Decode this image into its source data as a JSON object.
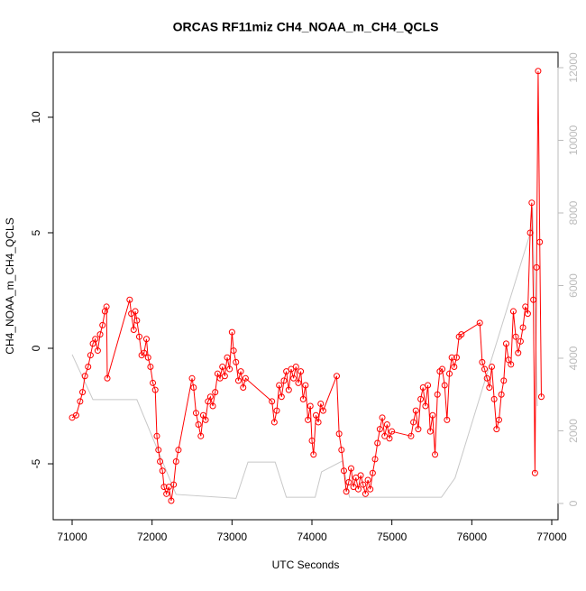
{
  "chart_data": {
    "type": "line",
    "title": "ORCAS RF11miz CH4_NOAA_m_CH4_QCLS",
    "x_label": "UTC Seconds",
    "y_label": "CH4_NOAA_m_CH4_QCLS",
    "xlim": [
      70763,
      77079
    ],
    "xticks": [
      71000,
      72000,
      73000,
      74000,
      75000,
      76000,
      77000
    ],
    "ylim": [
      -7.42,
      12.81
    ],
    "yticks": [
      -5,
      0,
      5,
      10
    ],
    "y2lim": [
      -447,
      12422
    ],
    "y2ticks": [
      0,
      2000,
      4000,
      6000,
      8000,
      10000,
      12000
    ],
    "series": [
      {
        "color": "#ff0000",
        "markers": true,
        "x": [
          71000,
          71050,
          71100,
          71130,
          71160,
          71200,
          71230,
          71260,
          71290,
          71320,
          71350,
          71380,
          71410,
          71430,
          71440,
          71720,
          71740,
          71770,
          71790,
          71810,
          71840,
          71870,
          71900,
          71930,
          71950,
          71980,
          72010,
          72040,
          72060,
          72080,
          72100,
          72130,
          72150,
          72180,
          72210,
          72240,
          72270,
          72300,
          72330,
          72500,
          72520,
          72550,
          72580,
          72610,
          72640,
          72670,
          72700,
          72730,
          72760,
          72790,
          72820,
          72850,
          72880,
          72910,
          72940,
          72970,
          73000,
          73020,
          73050,
          73080,
          73110,
          73140,
          73170,
          73500,
          73530,
          73560,
          73590,
          73620,
          73650,
          73680,
          73710,
          73740,
          73770,
          73800,
          73830,
          73860,
          73890,
          73920,
          73950,
          73980,
          74000,
          74020,
          74050,
          74080,
          74110,
          74140,
          74310,
          74340,
          74370,
          74400,
          74430,
          74460,
          74490,
          74520,
          74550,
          74580,
          74610,
          74640,
          74670,
          74700,
          74730,
          74760,
          74790,
          74820,
          74850,
          74880,
          74910,
          74940,
          74970,
          75000,
          75240,
          75270,
          75300,
          75330,
          75360,
          75390,
          75420,
          75450,
          75480,
          75510,
          75540,
          75570,
          75600,
          75630,
          75660,
          75690,
          75720,
          75750,
          75780,
          75810,
          75840,
          75870,
          76100,
          76130,
          76160,
          76190,
          76220,
          76250,
          76280,
          76310,
          76340,
          76370,
          76400,
          76430,
          76460,
          76490,
          76520,
          76550,
          76580,
          76610,
          76640,
          76670,
          76700,
          76730,
          76750,
          76770,
          76790,
          76810,
          76830,
          76850,
          76870
        ],
        "values": [
          -3,
          -2.9,
          -2.3,
          -1.9,
          -1.2,
          -0.8,
          -0.3,
          0.2,
          0.4,
          -0.1,
          0.6,
          1.0,
          1.6,
          1.8,
          -1.3,
          2.1,
          1.5,
          0.8,
          1.6,
          1.2,
          0.5,
          -0.3,
          -0.2,
          0.4,
          -0.4,
          -0.8,
          -1.5,
          -1.8,
          -3.8,
          -4.4,
          -4.9,
          -5.3,
          -6.0,
          -6.3,
          -6.0,
          -6.6,
          -5.9,
          -4.9,
          -4.4,
          -1.3,
          -1.7,
          -2.8,
          -3.3,
          -3.8,
          -2.9,
          -3.1,
          -2.3,
          -2.1,
          -2.5,
          -1.9,
          -1.1,
          -1.3,
          -0.8,
          -1.2,
          -0.4,
          -0.9,
          0.7,
          -0.1,
          -0.6,
          -1.4,
          -1.0,
          -1.7,
          -1.3,
          -2.3,
          -3.2,
          -2.7,
          -1.6,
          -2.1,
          -1.4,
          -1.0,
          -1.8,
          -0.9,
          -1.3,
          -0.8,
          -1.5,
          -1.0,
          -2.2,
          -1.6,
          -3.1,
          -2.5,
          -4.0,
          -4.6,
          -2.9,
          -3.2,
          -2.4,
          -2.7,
          -1.2,
          -3.7,
          -4.4,
          -5.3,
          -6.2,
          -5.8,
          -5.2,
          -6.0,
          -5.6,
          -6.1,
          -5.5,
          -5.9,
          -6.3,
          -5.7,
          -6.1,
          -5.4,
          -4.8,
          -4.1,
          -3.5,
          -3.0,
          -3.8,
          -3.3,
          -3.9,
          -3.6,
          -3.8,
          -3.2,
          -2.7,
          -3.5,
          -2.2,
          -1.7,
          -2.5,
          -1.6,
          -3.6,
          -2.9,
          -4.6,
          -2.0,
          -1.0,
          -0.9,
          -1.6,
          -3.1,
          -1.1,
          -0.4,
          -0.8,
          -0.4,
          0.5,
          0.6,
          1.1,
          -0.6,
          -0.9,
          -1.3,
          -1.7,
          -0.8,
          -2.2,
          -3.5,
          -3.1,
          -2.0,
          -1.4,
          0.2,
          -0.5,
          -0.7,
          1.6,
          0.5,
          -0.2,
          0.3,
          0.9,
          1.8,
          1.5,
          5.0,
          6.3,
          2.1,
          -5.4,
          3.5,
          12.0,
          4.6,
          -2.1
        ]
      },
      {
        "color": "#c8c8c8",
        "axis": "y2",
        "markers": false,
        "x": [
          71000,
          71260,
          71810,
          72300,
          73050,
          73200,
          73540,
          73680,
          74040,
          74120,
          74380,
          74470,
          75620,
          75790,
          76750,
          76760,
          76820
        ],
        "values": [
          4100,
          2860,
          2860,
          250,
          140,
          1140,
          1140,
          170,
          170,
          870,
          1170,
          170,
          170,
          700,
          7580,
          8150,
          2680
        ]
      }
    ]
  }
}
